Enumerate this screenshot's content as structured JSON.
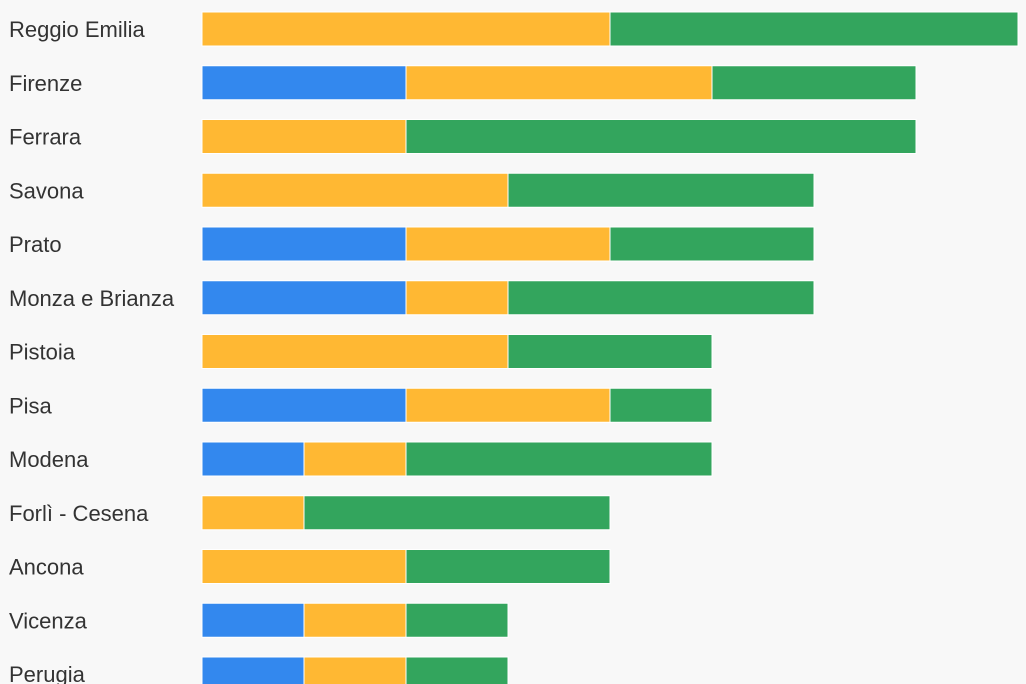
{
  "chart_data": {
    "type": "bar",
    "orientation": "horizontal",
    "stacked": true,
    "title": "",
    "xlabel": "",
    "ylabel": "",
    "legend": "none",
    "grid": false,
    "xlim": [
      0,
      8
    ],
    "categories": [
      "Reggio Emilia",
      "Firenze",
      "Ferrara",
      "Savona",
      "Prato",
      "Monza e Brianza",
      "Pistoia",
      "Pisa",
      "Modena",
      "Forlì - Cesena",
      "Ancona",
      "Vicenza",
      "Perugia"
    ],
    "series": [
      {
        "color": "#3388ee",
        "values": [
          0,
          2,
          0,
          0,
          2,
          2,
          0,
          2,
          1,
          0,
          0,
          1,
          1
        ]
      },
      {
        "color": "#ffb833",
        "values": [
          4,
          3,
          2,
          3,
          2,
          1,
          3,
          2,
          1,
          1,
          2,
          1,
          1
        ]
      },
      {
        "color": "#33a55d",
        "values": [
          4,
          2,
          5,
          3,
          2,
          3,
          2,
          1,
          3,
          3,
          2,
          1,
          1
        ]
      }
    ]
  }
}
